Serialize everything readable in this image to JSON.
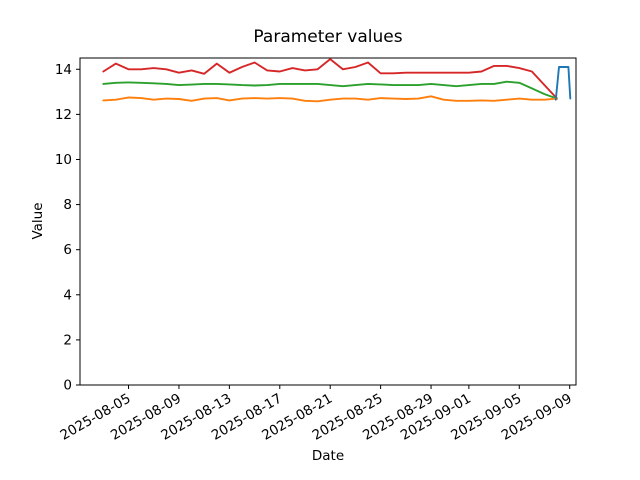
{
  "chart_data": {
    "type": "line",
    "title": "Parameter values",
    "xlabel": "Date",
    "ylabel": "Value",
    "grid": false,
    "legend": "none",
    "background_color": "#ffffff",
    "spine_color": "#000000",
    "ylim": [
      0,
      14.5
    ],
    "yticks": [
      0,
      2,
      4,
      6,
      8,
      10,
      12,
      14
    ],
    "x_epoch_date": "2025-08-01",
    "xlim_days": [
      0.15,
      39.5
    ],
    "xticks": [
      "2025-08-05",
      "2025-08-09",
      "2025-08-13",
      "2025-08-17",
      "2025-08-21",
      "2025-08-25",
      "2025-08-29",
      "2025-09-01",
      "2025-09-05",
      "2025-09-09"
    ],
    "xtick_rotation_deg": 30,
    "dates": [
      "2025-08-03",
      "2025-08-04",
      "2025-08-05",
      "2025-08-06",
      "2025-08-07",
      "2025-08-08",
      "2025-08-09",
      "2025-08-10",
      "2025-08-11",
      "2025-08-12",
      "2025-08-13",
      "2025-08-14",
      "2025-08-15",
      "2025-08-16",
      "2025-08-17",
      "2025-08-18",
      "2025-08-19",
      "2025-08-20",
      "2025-08-21",
      "2025-08-22",
      "2025-08-23",
      "2025-08-24",
      "2025-08-25",
      "2025-08-26",
      "2025-08-27",
      "2025-08-28",
      "2025-08-29",
      "2025-08-30",
      "2025-08-31",
      "2025-09-01",
      "2025-09-02",
      "2025-09-03",
      "2025-09-04",
      "2025-09-05",
      "2025-09-06",
      "2025-09-07",
      "2025-09-08"
    ],
    "series": [
      {
        "name": "red-series",
        "color": "#d62728",
        "values": [
          13.9,
          14.25,
          14.0,
          14.0,
          14.05,
          14.0,
          13.85,
          13.95,
          13.8,
          14.25,
          13.85,
          14.1,
          14.3,
          13.95,
          13.9,
          14.05,
          13.95,
          14.0,
          14.45,
          14.0,
          14.1,
          14.3,
          13.82,
          13.82,
          13.85,
          13.85,
          13.85,
          13.85,
          13.85,
          13.85,
          13.9,
          14.15,
          14.15,
          14.05,
          13.9,
          13.3,
          12.7
        ]
      },
      {
        "name": "green-series",
        "color": "#2ca02c",
        "values": [
          13.35,
          13.4,
          13.42,
          13.4,
          13.38,
          13.35,
          13.3,
          13.32,
          13.35,
          13.35,
          13.33,
          13.3,
          13.28,
          13.3,
          13.35,
          13.35,
          13.35,
          13.35,
          13.3,
          13.25,
          13.3,
          13.35,
          13.33,
          13.3,
          13.3,
          13.3,
          13.35,
          13.3,
          13.25,
          13.3,
          13.35,
          13.35,
          13.45,
          13.4,
          13.15,
          12.9,
          12.7
        ]
      },
      {
        "name": "orange-series",
        "color": "#ff7f0e",
        "values": [
          12.62,
          12.65,
          12.75,
          12.72,
          12.65,
          12.7,
          12.68,
          12.6,
          12.7,
          12.72,
          12.62,
          12.7,
          12.72,
          12.7,
          12.72,
          12.7,
          12.6,
          12.58,
          12.65,
          12.7,
          12.7,
          12.65,
          12.72,
          12.7,
          12.68,
          12.7,
          12.8,
          12.65,
          12.6,
          12.6,
          12.62,
          12.6,
          12.65,
          12.7,
          12.65,
          12.65,
          12.7
        ]
      },
      {
        "name": "blue-series",
        "color": "#1f77b4",
        "points_days": [
          [
            37.9,
            12.65
          ],
          [
            38.15,
            14.1
          ],
          [
            38.9,
            14.1
          ],
          [
            39.05,
            12.7
          ]
        ]
      }
    ]
  }
}
